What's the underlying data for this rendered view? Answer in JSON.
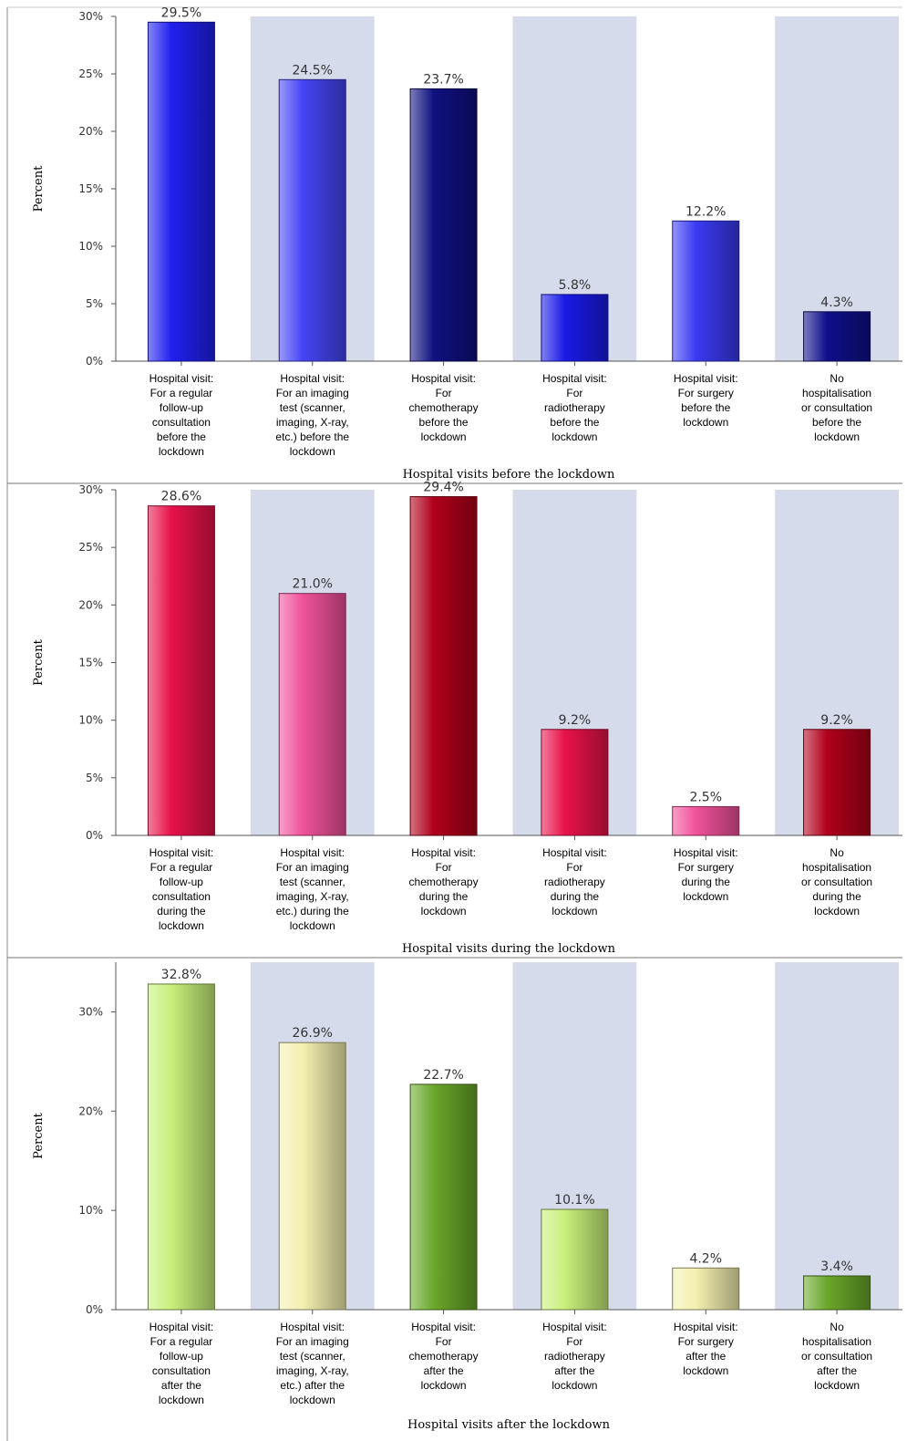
{
  "chart_data": [
    {
      "type": "bar",
      "title": "",
      "xlabel": "Hospital visits before the lockdown",
      "ylabel": "Percent",
      "ylim": [
        0,
        30
      ],
      "yticks": [
        "0%",
        "5%",
        "10%",
        "15%",
        "20%",
        "25%",
        "30%"
      ],
      "categories": [
        [
          "Hospital visit:",
          "For a regular",
          "follow-up",
          "consultation",
          "before the",
          "lockdown"
        ],
        [
          "Hospital visit:",
          "For an imaging",
          "test (scanner,",
          "imaging, X-ray,",
          "etc.) before the",
          "lockdown"
        ],
        [
          "Hospital visit:",
          "For",
          "chemotherapy",
          "before the",
          "lockdown"
        ],
        [
          "Hospital visit:",
          "For",
          "radiotherapy",
          "before the",
          "lockdown"
        ],
        [
          "Hospital visit:",
          "For surgery",
          "before the",
          "lockdown"
        ],
        [
          "No",
          "hospitalisation",
          "or consultation",
          "before the",
          "lockdown"
        ]
      ],
      "values": [
        29.5,
        24.5,
        23.7,
        5.8,
        12.2,
        4.3
      ],
      "labels": [
        "29.5%",
        "24.5%",
        "23.7%",
        "5.8%",
        "12.2%",
        "4.3%"
      ],
      "colors": [
        "#2020f0",
        "#4545f5",
        "#101080",
        "#1a1ae6",
        "#3a3af2",
        "#0f0f8a"
      ],
      "band_color": "#d5dbeb",
      "grid": false
    },
    {
      "type": "bar",
      "title": "",
      "xlabel": "Hospital visits during the lockdown",
      "ylabel": "Percent",
      "ylim": [
        0,
        30
      ],
      "yticks": [
        "0%",
        "5%",
        "10%",
        "15%",
        "20%",
        "25%",
        "30%"
      ],
      "categories": [
        [
          "Hospital visit:",
          "For a regular",
          "follow-up",
          "consultation",
          "during the",
          "lockdown"
        ],
        [
          "Hospital visit:",
          "For an imaging",
          "test (scanner,",
          "imaging, X-ray,",
          "etc.) during the",
          "lockdown"
        ],
        [
          "Hospital visit:",
          "For",
          "chemotherapy",
          "during the",
          "lockdown"
        ],
        [
          "Hospital visit:",
          "For",
          "radiotherapy",
          "during the",
          "lockdown"
        ],
        [
          "Hospital visit:",
          "For surgery",
          "during the",
          "lockdown"
        ],
        [
          "No",
          "hospitalisation",
          "or consultation",
          "during the",
          "lockdown"
        ]
      ],
      "values": [
        28.6,
        21.0,
        29.4,
        9.2,
        2.5,
        9.2
      ],
      "labels": [
        "28.6%",
        "21.0%",
        "29.4%",
        "9.2%",
        "2.5%",
        "9.2%"
      ],
      "colors": [
        "#e8124a",
        "#f0529a",
        "#b0001a",
        "#e8124a",
        "#f0529a",
        "#b0001a"
      ],
      "band_color": "#d5dbeb",
      "grid": false
    },
    {
      "type": "bar",
      "title": "",
      "xlabel": "Hospital visits after the lockdown",
      "ylabel": "Percent",
      "ylim": [
        0,
        35
      ],
      "yticks": [
        "0%",
        "10%",
        "20%",
        "30%"
      ],
      "tick_values": [
        0,
        10,
        20,
        30
      ],
      "categories": [
        [
          "Hospital visit:",
          "For a regular",
          "follow-up",
          "consultation",
          "after the",
          "lockdown"
        ],
        [
          "Hospital visit:",
          "For an imaging",
          "test (scanner,",
          "imaging, X-ray,",
          "etc.) after the",
          "lockdown"
        ],
        [
          "Hospital visit:",
          "For",
          "chemotherapy",
          "after the",
          "lockdown"
        ],
        [
          "Hospital visit:",
          "For",
          "radiotherapy",
          "after the",
          "lockdown"
        ],
        [
          "Hospital visit:",
          "For surgery",
          "after the",
          "lockdown"
        ],
        [
          "No",
          "hospitalisation",
          "or consultation",
          "after the",
          "lockdown"
        ]
      ],
      "values": [
        32.8,
        26.9,
        22.7,
        10.1,
        4.2,
        3.4
      ],
      "labels": [
        "32.8%",
        "26.9%",
        "22.7%",
        "10.1%",
        "4.2%",
        "3.4%"
      ],
      "colors": [
        "#c8f07a",
        "#f4f0b0",
        "#6aa82a",
        "#c8f07a",
        "#f4f0b0",
        "#6aa82a"
      ],
      "band_color": "#d5dbeb",
      "grid": false
    }
  ]
}
